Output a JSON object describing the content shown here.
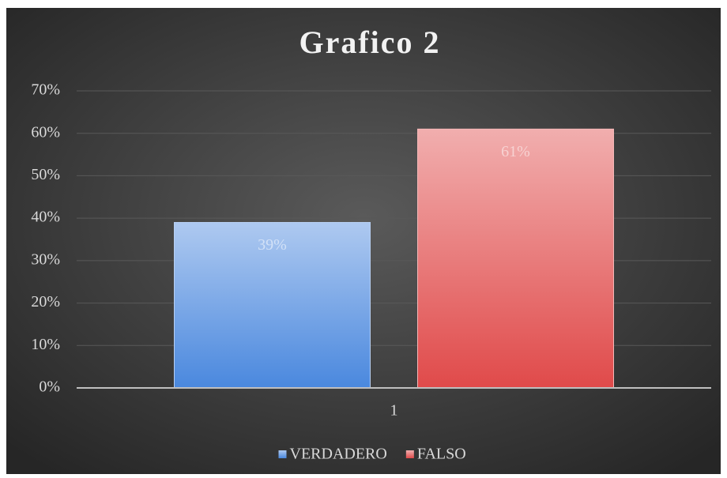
{
  "chart_data": {
    "type": "bar",
    "title": "Grafico 2",
    "categories": [
      "1"
    ],
    "series": [
      {
        "name": "VERDADERO",
        "color": "#4a88de",
        "values": [
          39
        ],
        "value_labels": [
          "39%"
        ]
      },
      {
        "name": "FALSO",
        "color": "#e04a4a",
        "values": [
          61
        ],
        "value_labels": [
          "61%"
        ]
      }
    ],
    "ylim": [
      0,
      70
    ],
    "yticks": [
      {
        "value": 0,
        "label": "0%"
      },
      {
        "value": 10,
        "label": "10%"
      },
      {
        "value": 20,
        "label": "20%"
      },
      {
        "value": 30,
        "label": "30%"
      },
      {
        "value": 40,
        "label": "40%"
      },
      {
        "value": 50,
        "label": "50%"
      },
      {
        "value": 60,
        "label": "60%"
      },
      {
        "value": 70,
        "label": "70%"
      }
    ],
    "grid": true,
    "legend": "bottom"
  }
}
